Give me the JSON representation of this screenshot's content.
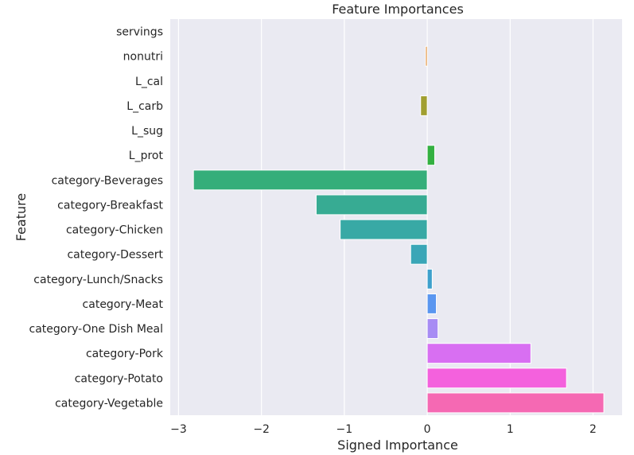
{
  "chart_data": {
    "type": "bar",
    "orientation": "horizontal",
    "title": "Feature Importances",
    "xlabel": "Signed Importance",
    "ylabel": "Feature",
    "xlim": [
      -3.1,
      2.35
    ],
    "xticks": [
      -3,
      -2,
      -1,
      0,
      1,
      2
    ],
    "xtick_labels": [
      "−3",
      "−2",
      "−1",
      "0",
      "1",
      "2"
    ],
    "grid": true,
    "background": "#eaeaf2",
    "categories": [
      "servings",
      "nonutri",
      "L_cal",
      "L_carb",
      "L_sug",
      "L_prot",
      "category-Beverages",
      "category-Breakfast",
      "category-Chicken",
      "category-Dessert",
      "category-Lunch/Snacks",
      "category-Meat",
      "category-One Dish Meal",
      "category-Pork",
      "category-Potato",
      "category-Vegetable"
    ],
    "values": [
      0.0,
      -0.02,
      0.0,
      -0.08,
      0.0,
      0.09,
      -2.82,
      -1.34,
      -1.05,
      -0.2,
      0.06,
      0.11,
      0.13,
      1.25,
      1.68,
      2.13
    ],
    "colors": [
      "#f77189",
      "#e08c32",
      "#bb9832",
      "#a19f31",
      "#7cac31",
      "#33b041",
      "#35ae7a",
      "#37ab93",
      "#38a9a5",
      "#3aa6b7",
      "#3da0cc",
      "#5a96f0",
      "#a78cf4",
      "#d86ff2",
      "#f461dd",
      "#f569b3"
    ]
  }
}
